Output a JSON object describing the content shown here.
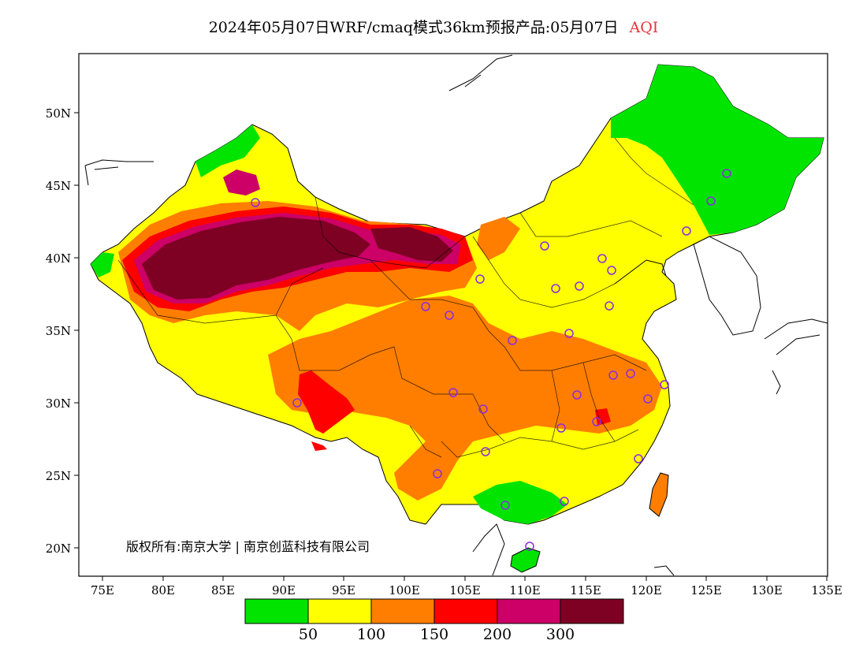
{
  "title": {
    "main": "2024年05月07日WRF/cmaq模式36km预报产品:05月07日",
    "variable": "AQI"
  },
  "axes": {
    "lat_labels": [
      "50N",
      "45N",
      "40N",
      "35N",
      "30N",
      "25N",
      "20N"
    ],
    "lon_labels": [
      "75E",
      "80E",
      "85E",
      "90E",
      "95E",
      "100E",
      "105E",
      "110E",
      "115E",
      "120E",
      "125E",
      "130E",
      "135E"
    ]
  },
  "copyright": "版权所有:南京大学 | 南京创蓝科技有限公司",
  "legend": {
    "colors": [
      "#00e400",
      "#ffff00",
      "#ff7e00",
      "#ff0000",
      "#cc0066",
      "#7e0023"
    ],
    "labels": [
      "50",
      "100",
      "150",
      "200",
      "300"
    ]
  },
  "colors": {
    "good": "#00e400",
    "moderate": "#ffff00",
    "sensitive": "#ff7e00",
    "unhealthy": "#ff0000",
    "very_unhealthy": "#cc0066",
    "hazardous": "#7e0023",
    "station_marker": "#8a2be2"
  }
}
